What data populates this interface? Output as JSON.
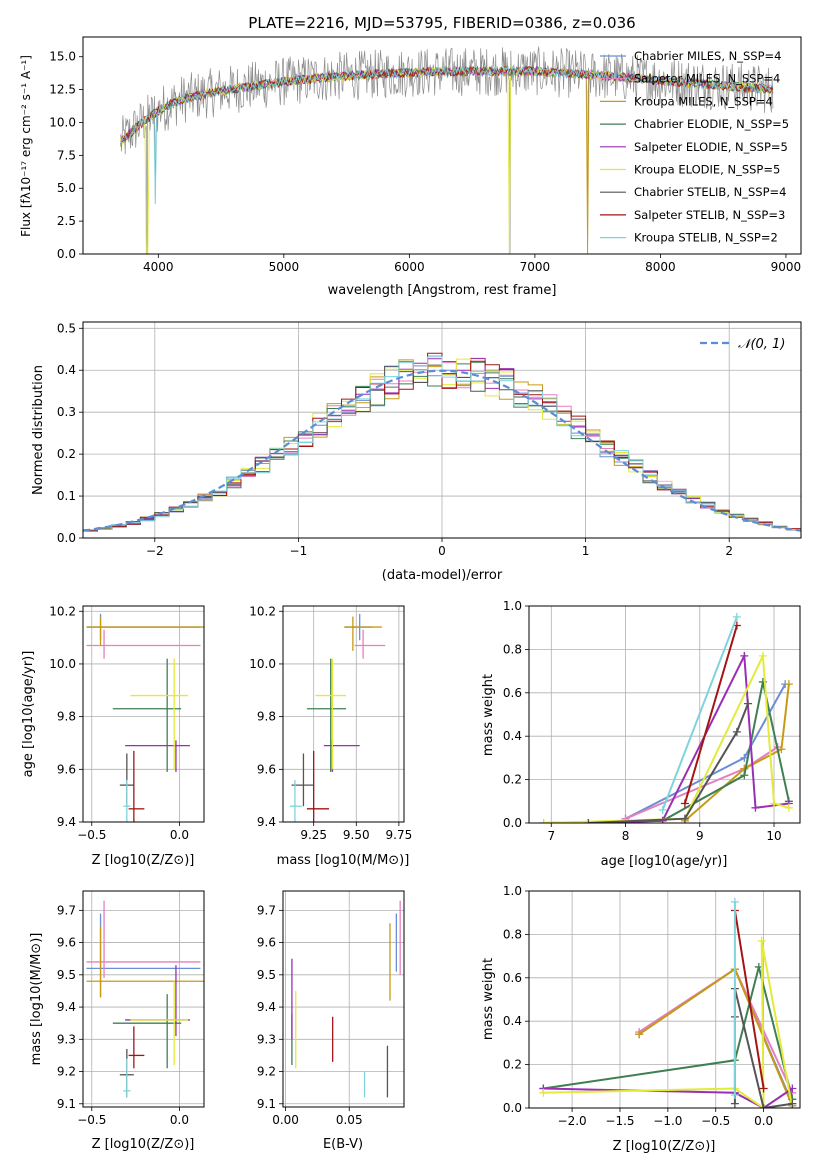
{
  "colors": {
    "chabrier_miles": "#6a8fd6",
    "salpeter_miles": "#e57fc0",
    "kroupa_miles": "#c79a14",
    "chabrier_elodie": "#3f7f52",
    "salpeter_elodie": "#9a2fb5",
    "kroupa_elodie": "#e3ea3a",
    "chabrier_stelib": "#555555",
    "salpeter_stelib": "#a31515",
    "kroupa_stelib": "#7fd4dc",
    "data_spectrum": "#8c8c8c",
    "normal_curve": "#5b8dd6",
    "orange": "#e07b39",
    "grid": "#b0b0b0"
  },
  "chart_data": [
    {
      "id": "spectrum",
      "type": "line",
      "title": "PLATE=2216, MJD=53795, FIBERID=0386, z=0.036",
      "xlabel": "wavelength [Angstrom, rest frame]",
      "ylabel": "Flux [fλ10⁻¹⁷ erg cm⁻² s⁻¹ A⁻¹]",
      "xlim": [
        3400,
        9120
      ],
      "ylim": [
        0,
        16.5
      ],
      "xticks": [
        4000,
        5000,
        6000,
        7000,
        8000,
        9000
      ],
      "yticks": [
        "0.0",
        "2.5",
        "5.0",
        "7.5",
        "10.0",
        "12.5",
        "15.0"
      ],
      "legend_position": "top-right",
      "legend": [
        "Chabrier MILES, N_SSP=4",
        "Salpeter MILES, N_SSP=4",
        "Kroupa MILES, N_SSP=4",
        "Chabrier ELODIE, N_SSP=5",
        "Salpeter ELODIE, N_SSP=5",
        "Kroupa ELODIE, N_SSP=5",
        "Chabrier STELIB, N_SSP=4",
        "Salpeter STELIB, N_SSP=3",
        "Kroupa STELIB, N_SSP=2"
      ],
      "continuum": {
        "x": [
          3700,
          3800,
          3900,
          4000,
          4100,
          4200,
          4300,
          4500,
          4700,
          5000,
          5300,
          5600,
          6000,
          6500,
          7000,
          7500,
          8000,
          8500,
          8900
        ],
        "y": [
          8.5,
          9.4,
          10.2,
          10.9,
          11.4,
          11.8,
          12.0,
          12.4,
          12.7,
          13.1,
          13.4,
          13.6,
          13.8,
          13.9,
          13.9,
          13.6,
          13.2,
          12.8,
          12.5
        ]
      },
      "data_noise": 1.9,
      "dips": [
        {
          "x": 3910,
          "y": 0.0
        },
        {
          "x": 6800,
          "y": 0.0
        },
        {
          "x": 7420,
          "y": 0.0
        },
        {
          "x": 3975,
          "y": 3.8
        }
      ]
    },
    {
      "id": "residuals",
      "type": "area",
      "xlabel": "(data-model)/error",
      "ylabel": "Normed distribution",
      "xlim": [
        -2.5,
        2.5
      ],
      "ylim": [
        0,
        0.515
      ],
      "xticks": [
        "−2",
        "−1",
        "0",
        "1",
        "2"
      ],
      "yticks": [
        "0.0",
        "0.1",
        "0.2",
        "0.3",
        "0.4",
        "0.5"
      ],
      "legend_position": "top-right",
      "legend": [
        "𝒩(0, 1)"
      ],
      "bins": 50,
      "curve": {
        "mean": 0,
        "sd": 1
      }
    },
    {
      "id": "age_vs_z",
      "type": "scatter",
      "xlabel": "Z [log10(Z/Z⊙)]",
      "ylabel": "age  [log10(age/yr)]",
      "xlim": [
        -0.55,
        0.14
      ],
      "ylim": [
        9.4,
        10.22
      ],
      "xticks": [
        "−0.5",
        "0.0"
      ],
      "yticks": [
        "9.4",
        "9.6",
        "9.8",
        "10.0",
        "10.2"
      ],
      "points": [
        {
          "model": "chabrier_miles",
          "x": -0.45,
          "xerr": [
            0.08,
            0.57
          ],
          "y": 10.14,
          "yerr": [
            0.05,
            0.05
          ]
        },
        {
          "model": "salpeter_miles",
          "x": -0.43,
          "xerr": [
            0.1,
            0.55
          ],
          "y": 10.07,
          "yerr": [
            0.05,
            0.06
          ]
        },
        {
          "model": "kroupa_miles",
          "x": -0.45,
          "xerr": [
            0.08,
            0.59
          ],
          "y": 10.14,
          "yerr": [
            0.07,
            0.04
          ]
        },
        {
          "model": "chabrier_elodie",
          "x": -0.07,
          "xerr": [
            0.31,
            0.08
          ],
          "y": 9.83,
          "yerr": [
            0.24,
            0.19
          ]
        },
        {
          "model": "salpeter_elodie",
          "x": -0.02,
          "xerr": [
            0.29,
            0.08
          ],
          "y": 9.69,
          "yerr": [
            0.1,
            0.02
          ]
        },
        {
          "model": "kroupa_elodie",
          "x": -0.03,
          "xerr": [
            0.25,
            0.08
          ],
          "y": 9.88,
          "yerr": [
            0.28,
            0.14
          ]
        },
        {
          "model": "chabrier_stelib",
          "x": -0.3,
          "xerr": [
            0.04,
            0.04
          ],
          "y": 9.54,
          "yerr": [
            0.08,
            0.12
          ]
        },
        {
          "model": "salpeter_stelib",
          "x": -0.26,
          "xerr": [
            0.03,
            0.06
          ],
          "y": 9.45,
          "yerr": [
            0.05,
            0.22
          ]
        },
        {
          "model": "kroupa_stelib",
          "x": -0.3,
          "xerr": [
            0.02,
            0.02
          ],
          "y": 9.46,
          "yerr": [
            0.06,
            0.1
          ]
        }
      ]
    },
    {
      "id": "age_vs_mass",
      "type": "scatter",
      "xlabel": "mass [log10(M/M⊙)]",
      "ylabel": "",
      "xlim": [
        9.07,
        9.78
      ],
      "ylim": [
        9.4,
        10.22
      ],
      "xticks": [
        "9.25",
        "9.50",
        "9.75"
      ],
      "yticks": [
        "9.4",
        "9.6",
        "9.8",
        "10.0",
        "10.2"
      ],
      "points": [
        {
          "model": "chabrier_miles",
          "x": 9.52,
          "xerr": [
            0.09,
            0.07
          ],
          "y": 10.14,
          "yerr": [
            0.05,
            0.05
          ]
        },
        {
          "model": "salpeter_miles",
          "x": 9.54,
          "xerr": [
            0.05,
            0.13
          ],
          "y": 10.07,
          "yerr": [
            0.05,
            0.06
          ]
        },
        {
          "model": "kroupa_miles",
          "x": 9.48,
          "xerr": [
            0.05,
            0.17
          ],
          "y": 10.14,
          "yerr": [
            0.09,
            0.04
          ]
        },
        {
          "model": "chabrier_elodie",
          "x": 9.35,
          "xerr": [
            0.14,
            0.09
          ],
          "y": 9.83,
          "yerr": [
            0.24,
            0.19
          ]
        },
        {
          "model": "salpeter_elodie",
          "x": 9.36,
          "xerr": [
            0.05,
            0.16
          ],
          "y": 9.69,
          "yerr": [
            0.1,
            0.02
          ]
        },
        {
          "model": "kroupa_elodie",
          "x": 9.36,
          "xerr": [
            0.1,
            0.08
          ],
          "y": 9.88,
          "yerr": [
            0.28,
            0.14
          ]
        },
        {
          "model": "chabrier_stelib",
          "x": 9.19,
          "xerr": [
            0.07,
            0.06
          ],
          "y": 9.54,
          "yerr": [
            0.08,
            0.12
          ]
        },
        {
          "model": "salpeter_stelib",
          "x": 9.25,
          "xerr": [
            0.04,
            0.09
          ],
          "y": 9.45,
          "yerr": [
            0.05,
            0.22
          ]
        },
        {
          "model": "kroupa_stelib",
          "x": 9.14,
          "xerr": [
            0.03,
            0.04
          ],
          "y": 9.46,
          "yerr": [
            0.06,
            0.1
          ]
        }
      ]
    },
    {
      "id": "mass_weight_vs_age",
      "type": "line",
      "xlabel": "age  [log10(age/yr)]",
      "ylabel": "mass weight",
      "xlim": [
        6.7,
        10.35
      ],
      "ylim": [
        0,
        1.0
      ],
      "xticks": [
        "7",
        "8",
        "9",
        "10"
      ],
      "yticks": [
        "0.0",
        "0.2",
        "0.4",
        "0.6",
        "0.8",
        "1.0"
      ],
      "series": [
        {
          "model": "chabrier_miles",
          "x": [
            8.0,
            9.6,
            10.15
          ],
          "y": [
            0.02,
            0.3,
            0.64
          ]
        },
        {
          "model": "salpeter_miles",
          "x": [
            8.0,
            9.6,
            10.05
          ],
          "y": [
            0.02,
            0.25,
            0.35
          ]
        },
        {
          "model": "kroupa_miles",
          "x": [
            8.8,
            9.6,
            10.1,
            10.2
          ],
          "y": [
            0.01,
            0.25,
            0.34,
            0.64
          ]
        },
        {
          "model": "chabrier_elodie",
          "x": [
            6.9,
            8.5,
            9.6,
            9.85,
            10.2
          ],
          "y": [
            0.0,
            0.01,
            0.22,
            0.65,
            0.1
          ]
        },
        {
          "model": "salpeter_elodie",
          "x": [
            7.5,
            8.5,
            9.6,
            9.75,
            10.2
          ],
          "y": [
            0.0,
            0.01,
            0.77,
            0.07,
            0.09
          ]
        },
        {
          "model": "kroupa_elodie",
          "x": [
            6.9,
            8.8,
            9.85,
            10.0,
            10.2
          ],
          "y": [
            0.0,
            0.02,
            0.77,
            0.09,
            0.07
          ]
        },
        {
          "model": "chabrier_stelib",
          "x": [
            7.5,
            8.8,
            9.5,
            9.65
          ],
          "y": [
            0.0,
            0.02,
            0.42,
            0.55
          ]
        },
        {
          "model": "salpeter_stelib",
          "x": [
            8.8,
            9.5
          ],
          "y": [
            0.09,
            0.91
          ]
        },
        {
          "model": "kroupa_stelib",
          "x": [
            8.5,
            9.5
          ],
          "y": [
            0.06,
            0.95
          ]
        }
      ]
    },
    {
      "id": "mass_vs_z",
      "type": "scatter",
      "xlabel": "Z [log10(Z/Z⊙)]",
      "ylabel": "mass [log10(M/M⊙)]",
      "xlim": [
        -0.55,
        0.14
      ],
      "ylim": [
        9.09,
        9.76
      ],
      "xticks": [
        "−0.5",
        "0.0"
      ],
      "yticks": [
        "9.1",
        "9.2",
        "9.3",
        "9.4",
        "9.5",
        "9.6",
        "9.7"
      ],
      "points": [
        {
          "model": "chabrier_miles",
          "x": -0.45,
          "xerr": [
            0.08,
            0.57
          ],
          "y": 9.52,
          "yerr": [
            0.09,
            0.17
          ]
        },
        {
          "model": "salpeter_miles",
          "x": -0.43,
          "xerr": [
            0.1,
            0.55
          ],
          "y": 9.54,
          "yerr": [
            0.05,
            0.19
          ]
        },
        {
          "model": "kroupa_miles",
          "x": -0.45,
          "xerr": [
            0.08,
            0.59
          ],
          "y": 9.48,
          "yerr": [
            0.05,
            0.17
          ]
        },
        {
          "model": "chabrier_elodie",
          "x": -0.07,
          "xerr": [
            0.31,
            0.08
          ],
          "y": 9.35,
          "yerr": [
            0.14,
            0.09
          ]
        },
        {
          "model": "salpeter_elodie",
          "x": -0.02,
          "xerr": [
            0.29,
            0.08
          ],
          "y": 9.36,
          "yerr": [
            0.05,
            0.17
          ]
        },
        {
          "model": "kroupa_elodie",
          "x": -0.03,
          "xerr": [
            0.25,
            0.08
          ],
          "y": 9.36,
          "yerr": [
            0.14,
            0.12
          ]
        },
        {
          "model": "chabrier_stelib",
          "x": -0.3,
          "xerr": [
            0.04,
            0.04
          ],
          "y": 9.19,
          "yerr": [
            0.07,
            0.08
          ]
        },
        {
          "model": "salpeter_stelib",
          "x": -0.26,
          "xerr": [
            0.03,
            0.06
          ],
          "y": 9.25,
          "yerr": [
            0.04,
            0.09
          ]
        },
        {
          "model": "kroupa_stelib",
          "x": -0.3,
          "xerr": [
            0.02,
            0.02
          ],
          "y": 9.14,
          "yerr": [
            0.02,
            0.1
          ]
        }
      ]
    },
    {
      "id": "mass_vs_ebv",
      "type": "scatter",
      "xlabel": "E(B-V)",
      "ylabel": "",
      "xlim": [
        -0.002,
        0.093
      ],
      "ylim": [
        9.09,
        9.76
      ],
      "xticks": [
        "0.00",
        "0.05"
      ],
      "yticks": [
        "9.1",
        "9.2",
        "9.3",
        "9.4",
        "9.5",
        "9.6",
        "9.7"
      ],
      "points": [
        {
          "model": "chabrier_miles",
          "x": 0.087,
          "y": 9.59,
          "yerr": [
            0.08,
            0.1
          ]
        },
        {
          "model": "salpeter_miles",
          "x": 0.09,
          "y": 9.61,
          "yerr": [
            0.11,
            0.12
          ]
        },
        {
          "model": "kroupa_miles",
          "x": 0.082,
          "y": 9.54,
          "yerr": [
            0.12,
            0.12
          ]
        },
        {
          "model": "chabrier_elodie",
          "x": 0.005,
          "y": 9.3,
          "yerr": [
            0.08,
            0.08
          ]
        },
        {
          "model": "salpeter_elodie",
          "x": 0.005,
          "y": 9.46,
          "yerr": [
            0.16,
            0.09
          ]
        },
        {
          "model": "kroupa_elodie",
          "x": 0.008,
          "y": 9.35,
          "yerr": [
            0.14,
            0.1
          ]
        },
        {
          "model": "chabrier_stelib",
          "x": 0.08,
          "y": 9.2,
          "yerr": [
            0.08,
            0.08
          ]
        },
        {
          "model": "salpeter_stelib",
          "x": 0.037,
          "y": 9.3,
          "yerr": [
            0.07,
            0.07
          ]
        },
        {
          "model": "kroupa_stelib",
          "x": 0.062,
          "y": 9.16,
          "yerr": [
            0.04,
            0.04
          ]
        }
      ]
    },
    {
      "id": "mass_weight_vs_z",
      "type": "line",
      "xlabel": "Z [log10(Z/Z⊙)]",
      "ylabel": "mass weight",
      "xlim": [
        -2.45,
        0.38
      ],
      "ylim": [
        0,
        1.0
      ],
      "xticks": [
        "−2.0",
        "−1.5",
        "−1.0",
        "−0.5",
        "0.0"
      ],
      "yticks": [
        "0.0",
        "0.2",
        "0.4",
        "0.6",
        "0.8",
        "1.0"
      ],
      "series": [
        {
          "model": "chabrier_miles",
          "x": [
            -1.3,
            -0.3,
            0.3
          ],
          "y": [
            0.34,
            0.64,
            0.02
          ]
        },
        {
          "model": "salpeter_miles",
          "x": [
            -1.3,
            -0.3,
            0.3
          ],
          "y": [
            0.35,
            0.64,
            0.07
          ]
        },
        {
          "model": "kroupa_miles",
          "x": [
            -1.3,
            -0.3,
            0.3
          ],
          "y": [
            0.34,
            0.64,
            0.01
          ]
        },
        {
          "model": "chabrier_elodie",
          "x": [
            -2.3,
            -0.3,
            -0.05,
            0.3
          ],
          "y": [
            0.09,
            0.22,
            0.65,
            0.04
          ]
        },
        {
          "model": "salpeter_elodie",
          "x": [
            -2.3,
            -0.3,
            0.0,
            0.3
          ],
          "y": [
            0.09,
            0.07,
            0.0,
            0.09
          ]
        },
        {
          "model": "kroupa_elodie",
          "x": [
            -2.3,
            -0.3,
            0.0,
            -0.02,
            0.3
          ],
          "y": [
            0.07,
            0.09,
            0.0,
            0.77,
            0.0
          ]
        },
        {
          "model": "chabrier_stelib",
          "x": [
            -0.3,
            -0.3,
            -0.3,
            0.0,
            0.3
          ],
          "y": [
            0.02,
            0.42,
            0.55,
            0.0,
            0.02
          ]
        },
        {
          "model": "salpeter_stelib",
          "x": [
            -0.3,
            0.0
          ],
          "y": [
            0.91,
            0.09
          ]
        },
        {
          "model": "kroupa_stelib",
          "x": [
            -0.3,
            -0.3
          ],
          "y": [
            0.06,
            0.95
          ]
        }
      ]
    }
  ]
}
